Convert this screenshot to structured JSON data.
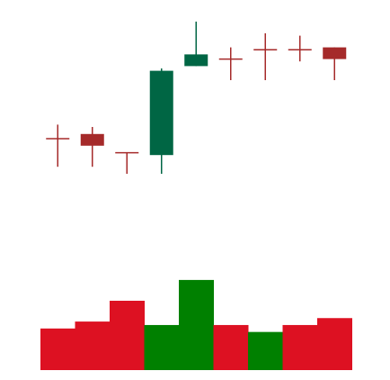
{
  "chart_data": {
    "type": "candlestick",
    "title": "",
    "xlabel": "",
    "ylabel": "",
    "grid": false,
    "legend": "none",
    "ylim": [
      0,
      100
    ],
    "volume_ylim": [
      0,
      30
    ],
    "candles": [
      {
        "open": 50,
        "high": 56,
        "low": 38,
        "close": 50,
        "volume": 12
      },
      {
        "open": 52,
        "high": 55,
        "low": 38,
        "close": 47,
        "volume": 14
      },
      {
        "open": 44,
        "high": 44,
        "low": 35,
        "close": 44,
        "volume": 20
      },
      {
        "open": 43,
        "high": 80,
        "low": 35,
        "close": 79,
        "volume": 13
      },
      {
        "open": 81,
        "high": 100,
        "low": 81,
        "close": 86,
        "volume": 26
      },
      {
        "open": 84,
        "high": 89,
        "low": 75,
        "close": 84,
        "volume": 13
      },
      {
        "open": 88,
        "high": 95,
        "low": 75,
        "close": 88,
        "volume": 11
      },
      {
        "open": 88,
        "high": 94,
        "low": 83,
        "close": 88,
        "volume": 13
      },
      {
        "open": 89,
        "high": 89,
        "low": 75,
        "close": 84,
        "volume": 15
      }
    ],
    "volume_colors": [
      "red",
      "red",
      "red",
      "green",
      "green",
      "red",
      "green",
      "red",
      "red"
    ],
    "colors": {
      "up": "#006644",
      "down": "#a52a2a",
      "volume_up": "#008000",
      "volume_down": "#dd1122"
    }
  }
}
